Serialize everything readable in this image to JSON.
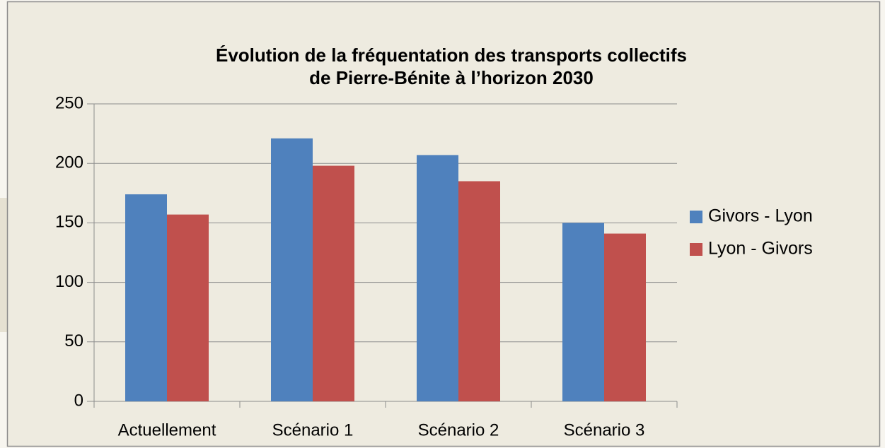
{
  "chart_data": {
    "type": "bar",
    "title": [
      "Évolution de la fréquentation des transports collectifs",
      "de Pierre-Bénite à l’horizon 2030"
    ],
    "categories": [
      "Actuellement",
      "Scénario 1",
      "Scénario 2",
      "Scénario 3"
    ],
    "series": [
      {
        "name": "Givors - Lyon",
        "color": "#4f81bd",
        "values": [
          174,
          221,
          207,
          150
        ]
      },
      {
        "name": "Lyon - Givors",
        "color": "#c0504d",
        "values": [
          157,
          198,
          185,
          141
        ]
      }
    ],
    "ylim": [
      0,
      250
    ],
    "yticks": [
      0,
      50,
      100,
      150,
      200,
      250
    ],
    "grid": true,
    "legend": "right"
  }
}
